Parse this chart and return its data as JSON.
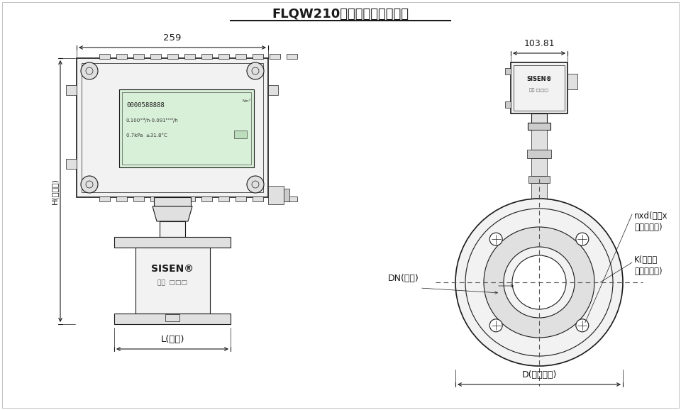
{
  "title": "FLQW210系列气体涡轮流量计",
  "dim_259": "259",
  "dim_103_81": "103.81",
  "dim_L": "L(长度)",
  "dim_H": "H(总高度)",
  "label_DN": "DN(通径)",
  "label_nxd_1": "nxd(孔数x",
  "label_nxd_2": "螺栓孔直径)",
  "label_K_1": "K(螺栓孔",
  "label_K_2": "中心圆直径)",
  "label_D": "D(法兰外径)",
  "bg": "#ffffff",
  "lc": "#1a1a1a",
  "fill_light": "#f2f2f2",
  "fill_mid": "#e0e0e0",
  "fill_dark": "#cccccc",
  "fill_screen": "#d8f0d8"
}
